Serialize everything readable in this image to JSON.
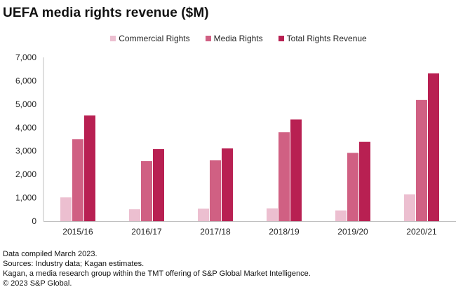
{
  "title": "UEFA media rights revenue ($M)",
  "colors": {
    "commercial": "#ECBFD0",
    "media": "#D06083",
    "total": "#B82052",
    "axis": "#BFBFBF"
  },
  "chart_data": {
    "type": "bar",
    "title": "UEFA media rights revenue ($M)",
    "xlabel": "",
    "ylabel": "",
    "categories": [
      "2015/16",
      "2016/17",
      "2017/18",
      "2018/19",
      "2019/20",
      "2020/21"
    ],
    "series": [
      {
        "name": "Commercial Rights",
        "color": "#ECBFD0",
        "values": [
          1020,
          510,
          540,
          550,
          460,
          1150
        ]
      },
      {
        "name": "Media Rights",
        "color": "#D06083",
        "values": [
          3500,
          2570,
          2600,
          3800,
          2920,
          5180
        ]
      },
      {
        "name": "Total Rights Revenue",
        "color": "#B82052",
        "values": [
          4520,
          3080,
          3110,
          4350,
          3390,
          6320
        ]
      }
    ],
    "ylim": [
      0,
      7000
    ],
    "yticks": [
      0,
      1000,
      2000,
      3000,
      4000,
      5000,
      6000,
      7000
    ],
    "ytick_labels": [
      "0",
      "1,000",
      "2,000",
      "3,000",
      "4,000",
      "5,000",
      "6,000",
      "7,000"
    ],
    "grid": false,
    "legend_position": "top-center"
  },
  "footnotes": [
    "Data compiled March 2023.",
    "Sources: Industry data; Kagan estimates.",
    "Kagan, a media research group within the TMT offering of S&P Global Market Intelligence.",
    "© 2023 S&P Global."
  ]
}
